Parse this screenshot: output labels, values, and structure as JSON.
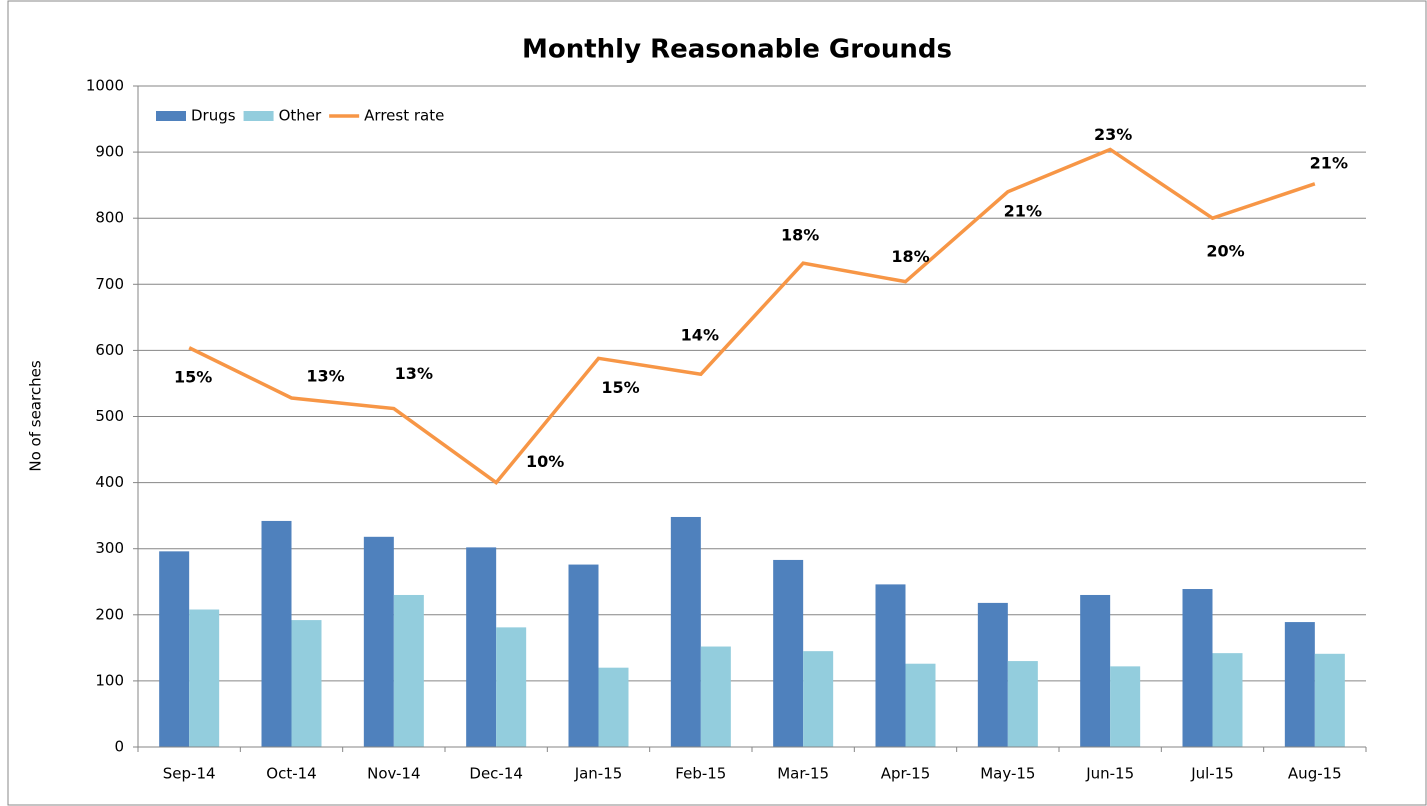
{
  "chart_data": {
    "type": "bar",
    "title": "Monthly Reasonable Grounds",
    "y_label": "No of searches",
    "categories": [
      "Sep-14",
      "Oct-14",
      "Nov-14",
      "Dec-14",
      "Jan-15",
      "Feb-15",
      "Mar-15",
      "Apr-15",
      "May-15",
      "Jun-15",
      "Jul-15",
      "Aug-15"
    ],
    "series": [
      {
        "name": "Drugs",
        "type": "bar",
        "color": "#4f81bd",
        "values": [
          296,
          342,
          318,
          302,
          276,
          348,
          283,
          246,
          218,
          230,
          239,
          189
        ]
      },
      {
        "name": "Other",
        "type": "bar",
        "color": "#93cddd",
        "values": [
          208,
          192,
          230,
          181,
          120,
          152,
          145,
          126,
          130,
          122,
          142,
          141
        ]
      },
      {
        "name": "Arrest rate",
        "type": "line",
        "axis": "y2",
        "color": "#f79646",
        "values": [
          15.1,
          13.2,
          12.8,
          10.0,
          14.7,
          14.1,
          18.3,
          17.6,
          21.0,
          22.6,
          20.0,
          21.3
        ],
        "value_labels": [
          "15%",
          "13%",
          "13%",
          "10%",
          "15%",
          "14%",
          "18%",
          "18%",
          "21%",
          "23%",
          "20%",
          "21%"
        ]
      }
    ],
    "ylim": [
      0,
      1000
    ],
    "yticks": [
      0,
      100,
      200,
      300,
      400,
      500,
      600,
      700,
      800,
      900,
      1000
    ],
    "y2lim": [
      0,
      25
    ],
    "grid": true,
    "legend": "top-left"
  }
}
